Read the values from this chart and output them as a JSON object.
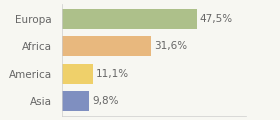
{
  "categories": [
    "Europa",
    "Africa",
    "America",
    "Asia"
  ],
  "values": [
    47.5,
    31.6,
    11.1,
    9.8
  ],
  "labels": [
    "47,5%",
    "31,6%",
    "11,1%",
    "9,8%"
  ],
  "bar_colors": [
    "#adc08a",
    "#e8b87e",
    "#efd06a",
    "#7f8fc0"
  ],
  "background_color": "#f7f7f2",
  "xlim": [
    0,
    65
  ],
  "bar_height": 0.72,
  "label_fontsize": 7.5,
  "tick_fontsize": 7.5,
  "label_color": "#666666",
  "tick_color": "#666666"
}
